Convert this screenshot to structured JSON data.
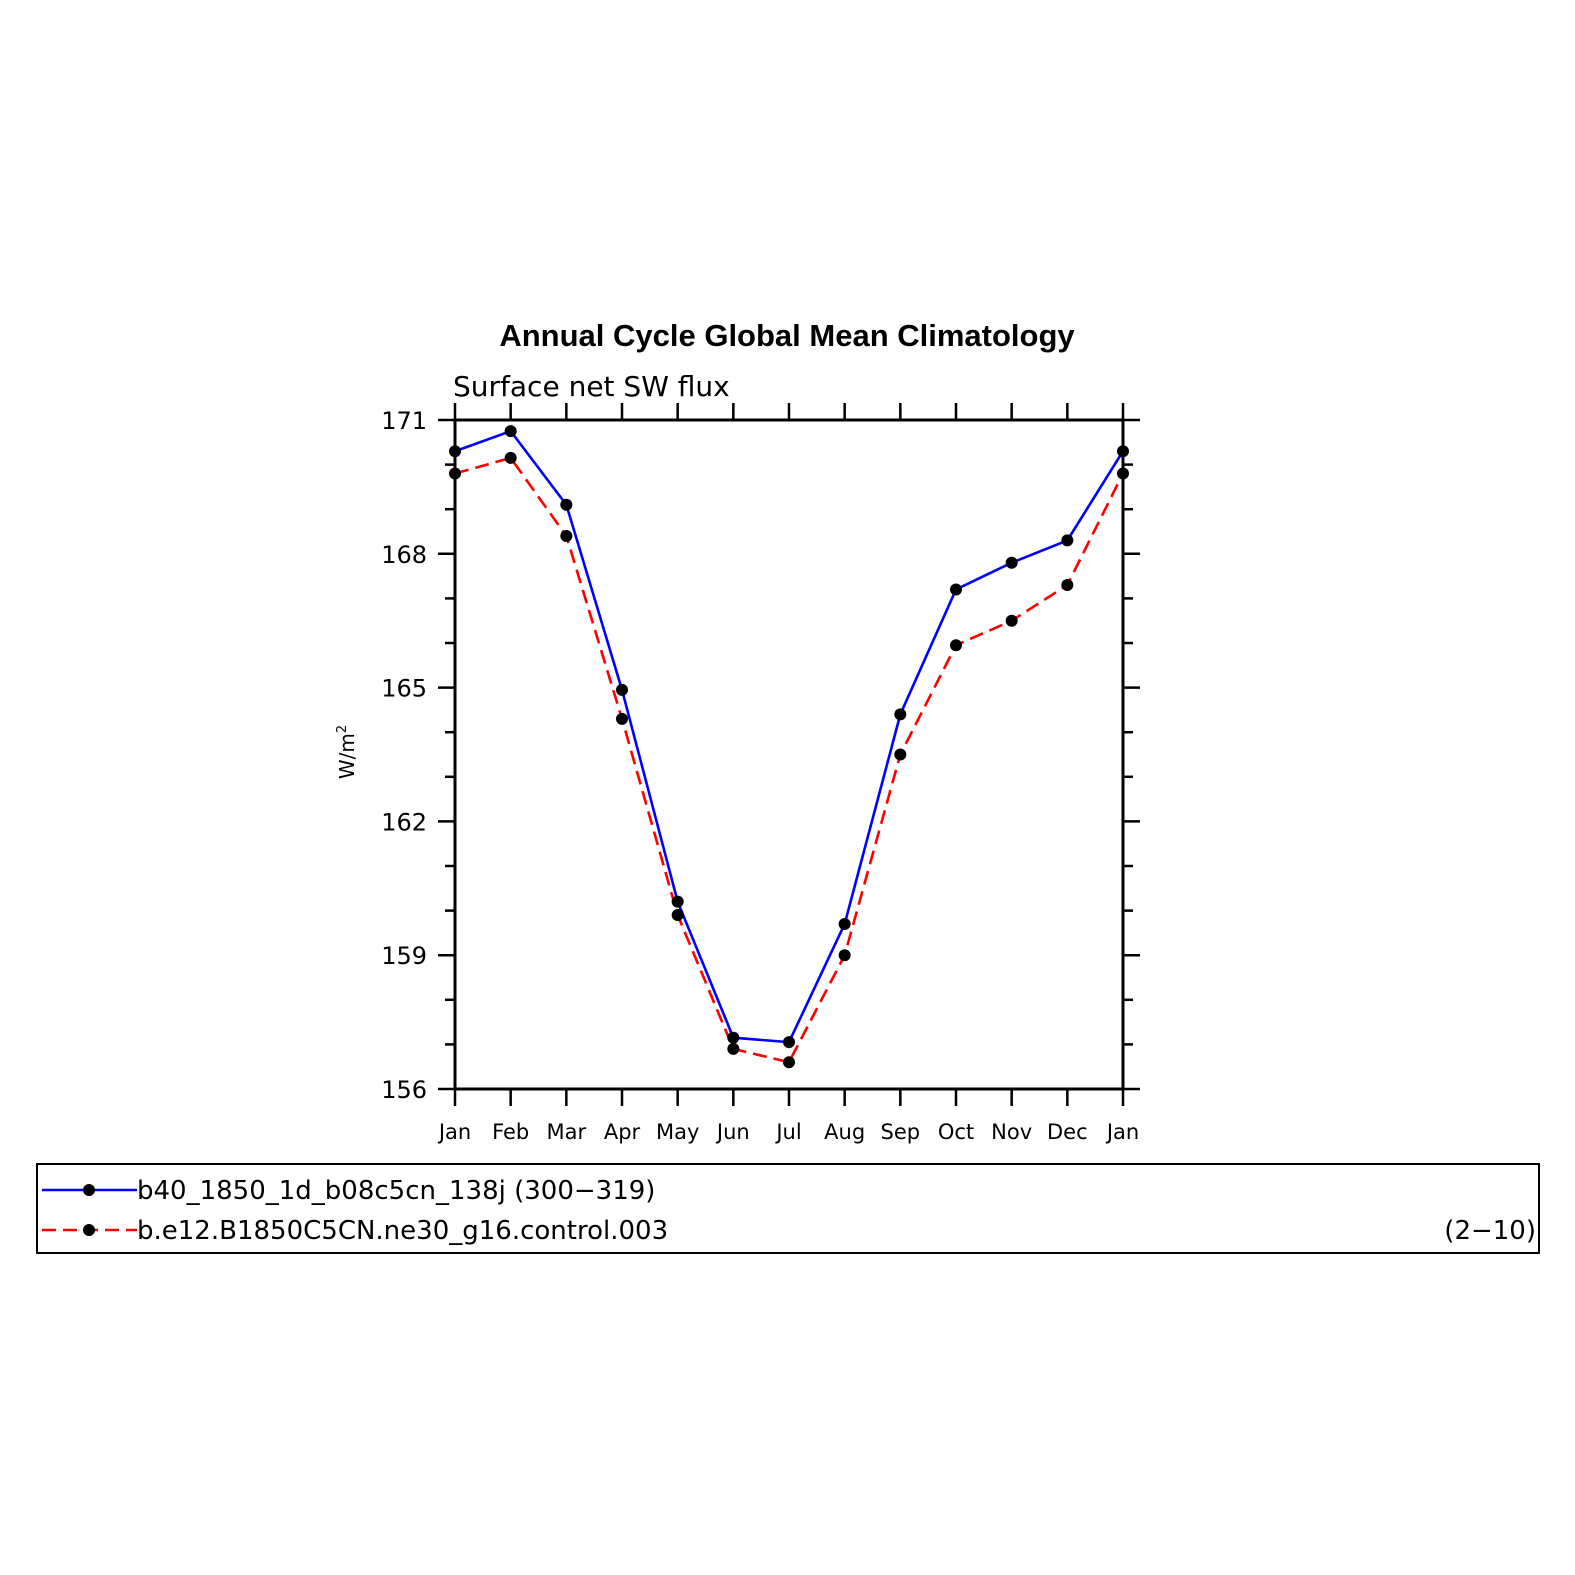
{
  "chart_data": {
    "type": "line",
    "title": "Annual Cycle Global Mean Climatology",
    "subtitle": "Surface net SW flux",
    "ylabel_base": "W/m",
    "ylabel_sup": "2",
    "categories": [
      "Jan",
      "Feb",
      "Mar",
      "Apr",
      "May",
      "Jun",
      "Jul",
      "Aug",
      "Sep",
      "Oct",
      "Nov",
      "Dec",
      "Jan"
    ],
    "ylim": [
      156,
      171
    ],
    "yticks": [
      156,
      159,
      162,
      165,
      168,
      171
    ],
    "grid": false,
    "legend_position": "bottom",
    "series": [
      {
        "name": "b40_1850_1d_b08c5cn_138j (300−319)",
        "suffix": "",
        "color": "#0000ff",
        "dash": "solid",
        "values": [
          170.3,
          170.75,
          169.1,
          164.95,
          160.2,
          157.15,
          157.05,
          159.7,
          164.4,
          167.2,
          167.8,
          168.3,
          170.3
        ]
      },
      {
        "name": "b.e12.B1850C5CN.ne30_g16.control.003",
        "suffix": "(2−10)",
        "color": "#ff0000",
        "dash": "dashed",
        "values": [
          169.8,
          170.15,
          168.4,
          164.3,
          159.9,
          156.9,
          156.6,
          159.0,
          163.5,
          165.95,
          166.5,
          167.3,
          169.8
        ]
      }
    ]
  }
}
